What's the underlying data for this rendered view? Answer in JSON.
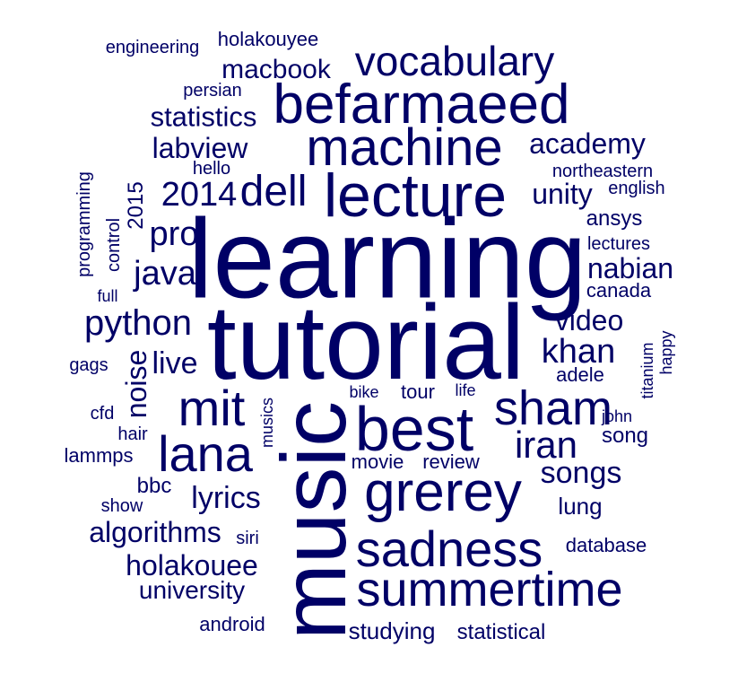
{
  "text_color": "#000066",
  "background_color": "#ffffff",
  "words": [
    "learning",
    "tutorial",
    "music",
    "best",
    "lecture",
    "machine",
    "befarmaeed",
    "sham",
    "grerey",
    "sadness",
    "summertime",
    "mit",
    "lana",
    "vocabulary",
    "dell",
    "iran",
    "python",
    "2014",
    "java",
    "pro",
    "academy",
    "lyrics",
    "live",
    "songs",
    "algorithms",
    "holakouee",
    "khan",
    "noise",
    "nabian",
    "statistics",
    "video",
    "labview",
    "macbook",
    "unity",
    "university",
    "studying",
    "statistical",
    "tour",
    "holakouyee",
    "engineering",
    "persian",
    "northeastern",
    "english",
    "ansys",
    "lectures",
    "canada",
    "adele",
    "bbc",
    "song",
    "lung",
    "database",
    "gags",
    "cfd",
    "hair",
    "lammps",
    "show",
    "siri",
    "android",
    "movie",
    "review",
    "bike",
    "life",
    "john",
    "hello",
    "full",
    "control",
    "programming",
    "2015",
    "musics",
    "titanium",
    "happy"
  ]
}
